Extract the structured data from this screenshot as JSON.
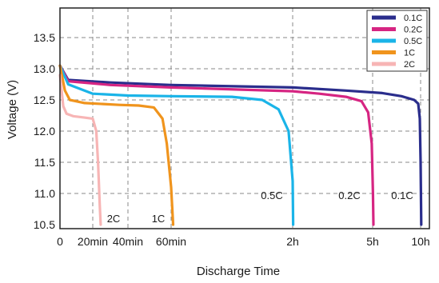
{
  "chart_data": {
    "type": "line",
    "title": "",
    "xlabel": "Discharge Time",
    "ylabel": "Voltage (V)",
    "ylim": [
      10.5,
      13.95
    ],
    "x_ticks": [
      {
        "label": "0",
        "t": 0
      },
      {
        "label": "20min",
        "t": 20
      },
      {
        "label": "40min",
        "t": 40
      },
      {
        "label": "60min",
        "t": 60
      },
      {
        "label": "2h",
        "t": 120
      },
      {
        "label": "5h",
        "t": 300
      },
      {
        "label": "10h",
        "t": 600
      }
    ],
    "x_gridlines": [
      20,
      40,
      60,
      120,
      300,
      600
    ],
    "y_ticks": [
      {
        "label": "10.5",
        "v": 10.5
      },
      {
        "label": "11.0",
        "v": 11.0
      },
      {
        "label": "11.5",
        "v": 11.5
      },
      {
        "label": "12.0",
        "v": 12.0
      },
      {
        "label": "12.5",
        "v": 12.5
      },
      {
        "label": "13.0",
        "v": 13.0
      },
      {
        "label": "13.5",
        "v": 13.5
      }
    ],
    "grid": "dashed",
    "legend_position": "top-right",
    "series": [
      {
        "name": "0.1C",
        "color": "#2a2d8c",
        "annotation": "0.1C",
        "points": [
          [
            0,
            13.05
          ],
          [
            5,
            12.82
          ],
          [
            30,
            12.78
          ],
          [
            60,
            12.74
          ],
          [
            120,
            12.7
          ],
          [
            240,
            12.65
          ],
          [
            360,
            12.61
          ],
          [
            480,
            12.56
          ],
          [
            560,
            12.5
          ],
          [
            585,
            12.44
          ],
          [
            595,
            12.2
          ],
          [
            600,
            11.5
          ],
          [
            604,
            10.5
          ]
        ]
      },
      {
        "name": "0.2C",
        "color": "#d62582",
        "annotation": "0.2C",
        "points": [
          [
            0,
            13.05
          ],
          [
            5,
            12.8
          ],
          [
            30,
            12.74
          ],
          [
            60,
            12.7
          ],
          [
            120,
            12.64
          ],
          [
            180,
            12.6
          ],
          [
            240,
            12.55
          ],
          [
            275,
            12.48
          ],
          [
            290,
            12.3
          ],
          [
            298,
            11.8
          ],
          [
            302,
            11.0
          ],
          [
            305,
            10.5
          ]
        ]
      },
      {
        "name": "0.5C",
        "color": "#1ab4e8",
        "annotation": "0.5C",
        "points": [
          [
            0,
            13.05
          ],
          [
            5,
            12.75
          ],
          [
            20,
            12.6
          ],
          [
            40,
            12.57
          ],
          [
            60,
            12.56
          ],
          [
            90,
            12.55
          ],
          [
            105,
            12.5
          ],
          [
            113,
            12.35
          ],
          [
            118,
            12.0
          ],
          [
            120,
            11.2
          ],
          [
            121,
            10.5
          ]
        ]
      },
      {
        "name": "1C",
        "color": "#f0941d",
        "annotation": "1C",
        "points": [
          [
            0,
            13.05
          ],
          [
            3,
            12.65
          ],
          [
            6,
            12.5
          ],
          [
            15,
            12.45
          ],
          [
            35,
            12.42
          ],
          [
            45,
            12.41
          ],
          [
            52,
            12.38
          ],
          [
            56,
            12.2
          ],
          [
            58,
            11.8
          ],
          [
            60,
            11.1
          ],
          [
            61,
            10.5
          ]
        ]
      },
      {
        "name": "2C",
        "color": "#f7b5b5",
        "annotation": "2C",
        "points": [
          [
            0,
            12.9
          ],
          [
            2,
            12.4
          ],
          [
            4,
            12.28
          ],
          [
            8,
            12.24
          ],
          [
            14,
            12.22
          ],
          [
            20,
            12.2
          ],
          [
            22,
            12.0
          ],
          [
            23,
            11.5
          ],
          [
            24,
            10.8
          ],
          [
            24.5,
            10.5
          ]
        ]
      }
    ]
  }
}
